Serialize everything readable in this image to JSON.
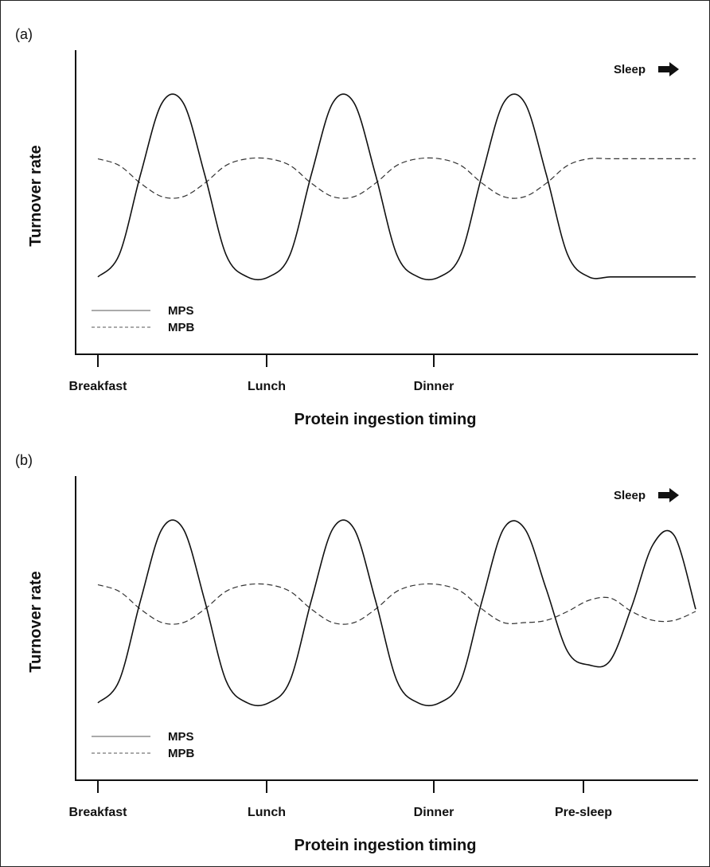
{
  "chart_data": [
    {
      "type": "line",
      "panel_label": "(a)",
      "ylabel": "Turnover rate",
      "xlabel": "Protein ingestion timing",
      "categories": [
        "Breakfast",
        "Lunch",
        "Dinner"
      ],
      "annotation": "Sleep",
      "annotation_icon": "right-arrow-icon",
      "legend_position": "bottom-left",
      "series": [
        {
          "name": "MPS",
          "style": "solid",
          "points": [
            [
              0,
              0.19
            ],
            [
              0.25,
              0.29
            ],
            [
              0.5,
              0.65
            ],
            [
              0.75,
              0.97
            ],
            [
              1,
              0.97
            ],
            [
              1.25,
              0.65
            ],
            [
              1.5,
              0.29
            ],
            [
              1.75,
              0.19
            ],
            [
              2,
              0.19
            ],
            [
              2.25,
              0.29
            ],
            [
              2.5,
              0.65
            ],
            [
              2.75,
              0.97
            ],
            [
              3,
              0.97
            ],
            [
              3.25,
              0.65
            ],
            [
              3.5,
              0.29
            ],
            [
              3.75,
              0.19
            ],
            [
              4,
              0.19
            ],
            [
              4.25,
              0.29
            ],
            [
              4.5,
              0.65
            ],
            [
              4.75,
              0.97
            ],
            [
              5,
              0.97
            ],
            [
              5.25,
              0.65
            ],
            [
              5.5,
              0.29
            ],
            [
              5.75,
              0.19
            ],
            [
              6,
              0.19
            ],
            [
              6.25,
              0.19
            ],
            [
              6.5,
              0.19
            ],
            [
              6.75,
              0.19
            ],
            [
              7,
              0.19
            ]
          ]
        },
        {
          "name": "MPB",
          "style": "dashed",
          "points": [
            [
              0,
              0.72
            ],
            [
              0.25,
              0.69
            ],
            [
              0.5,
              0.61
            ],
            [
              0.75,
              0.55
            ],
            [
              1,
              0.55
            ],
            [
              1.25,
              0.61
            ],
            [
              1.5,
              0.69
            ],
            [
              1.75,
              0.72
            ],
            [
              2,
              0.72
            ],
            [
              2.25,
              0.69
            ],
            [
              2.5,
              0.61
            ],
            [
              2.75,
              0.55
            ],
            [
              3,
              0.55
            ],
            [
              3.25,
              0.61
            ],
            [
              3.5,
              0.69
            ],
            [
              3.75,
              0.72
            ],
            [
              4,
              0.72
            ],
            [
              4.25,
              0.69
            ],
            [
              4.5,
              0.61
            ],
            [
              4.75,
              0.55
            ],
            [
              5,
              0.55
            ],
            [
              5.25,
              0.61
            ],
            [
              5.5,
              0.69
            ],
            [
              5.75,
              0.72
            ],
            [
              6,
              0.72
            ],
            [
              6.25,
              0.72
            ],
            [
              6.5,
              0.72
            ],
            [
              6.75,
              0.72
            ],
            [
              7,
              0.72
            ]
          ]
        }
      ]
    },
    {
      "type": "line",
      "panel_label": "(b)",
      "ylabel": "Turnover rate",
      "xlabel": "Protein ingestion timing",
      "categories": [
        "Breakfast",
        "Lunch",
        "Dinner",
        "Pre-sleep"
      ],
      "annotation": "Sleep",
      "annotation_icon": "right-arrow-icon",
      "legend_position": "bottom-left",
      "series": [
        {
          "name": "MPS",
          "style": "solid",
          "points": [
            [
              0,
              0.19
            ],
            [
              0.25,
              0.29
            ],
            [
              0.5,
              0.65
            ],
            [
              0.75,
              0.97
            ],
            [
              1,
              0.97
            ],
            [
              1.25,
              0.65
            ],
            [
              1.5,
              0.29
            ],
            [
              1.75,
              0.19
            ],
            [
              2,
              0.19
            ],
            [
              2.25,
              0.29
            ],
            [
              2.5,
              0.65
            ],
            [
              2.75,
              0.97
            ],
            [
              3,
              0.97
            ],
            [
              3.25,
              0.65
            ],
            [
              3.5,
              0.29
            ],
            [
              3.75,
              0.19
            ],
            [
              4,
              0.19
            ],
            [
              4.25,
              0.29
            ],
            [
              4.5,
              0.65
            ],
            [
              4.75,
              0.97
            ],
            [
              5,
              0.97
            ],
            [
              5.25,
              0.7
            ],
            [
              5.5,
              0.42
            ],
            [
              5.75,
              0.36
            ],
            [
              6,
              0.38
            ],
            [
              6.25,
              0.62
            ],
            [
              6.5,
              0.9
            ],
            [
              6.75,
              0.94
            ],
            [
              7,
              0.61
            ]
          ]
        },
        {
          "name": "MPB",
          "style": "dashed",
          "points": [
            [
              0,
              0.72
            ],
            [
              0.25,
              0.69
            ],
            [
              0.5,
              0.61
            ],
            [
              0.75,
              0.55
            ],
            [
              1,
              0.55
            ],
            [
              1.25,
              0.61
            ],
            [
              1.5,
              0.69
            ],
            [
              1.75,
              0.72
            ],
            [
              2,
              0.72
            ],
            [
              2.25,
              0.69
            ],
            [
              2.5,
              0.61
            ],
            [
              2.75,
              0.55
            ],
            [
              3,
              0.55
            ],
            [
              3.25,
              0.61
            ],
            [
              3.5,
              0.69
            ],
            [
              3.75,
              0.72
            ],
            [
              4,
              0.72
            ],
            [
              4.25,
              0.69
            ],
            [
              4.5,
              0.61
            ],
            [
              4.75,
              0.55
            ],
            [
              5,
              0.55
            ],
            [
              5.25,
              0.56
            ],
            [
              5.5,
              0.6
            ],
            [
              5.75,
              0.65
            ],
            [
              6,
              0.66
            ],
            [
              6.25,
              0.6
            ],
            [
              6.5,
              0.56
            ],
            [
              6.75,
              0.56
            ],
            [
              7,
              0.6
            ]
          ]
        }
      ]
    }
  ]
}
